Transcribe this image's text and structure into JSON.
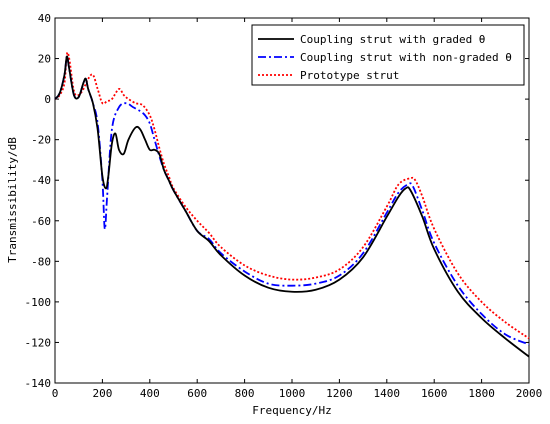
{
  "chart_data": {
    "type": "line",
    "title": "",
    "xlabel": "Frequency/Hz",
    "ylabel": "Transmissibility/dB",
    "xlim": [
      0,
      2000
    ],
    "ylim": [
      -140,
      40
    ],
    "xticks": [
      0,
      200,
      400,
      600,
      800,
      1000,
      1200,
      1400,
      1600,
      1800,
      2000
    ],
    "yticks": [
      -140,
      -120,
      -100,
      -80,
      -60,
      -40,
      -20,
      0,
      20,
      40
    ],
    "grid": false,
    "legend_position": "top-right",
    "series": [
      {
        "name": "Coupling strut with graded θ",
        "color": "#000000",
        "dash": "solid",
        "x": [
          0,
          20,
          40,
          50,
          60,
          80,
          100,
          120,
          130,
          140,
          160,
          180,
          200,
          215,
          225,
          240,
          255,
          270,
          290,
          310,
          340,
          360,
          380,
          400,
          420,
          440,
          460,
          480,
          500,
          550,
          600,
          650,
          700,
          800,
          900,
          1000,
          1100,
          1200,
          1300,
          1400,
          1450,
          1480,
          1500,
          1550,
          1600,
          1700,
          1800,
          1900,
          2000
        ],
        "y": [
          0,
          3,
          12,
          21,
          15,
          2,
          1,
          8,
          10,
          5,
          -2,
          -15,
          -38,
          -44,
          -38,
          -22,
          -17,
          -25,
          -27,
          -20,
          -14,
          -15,
          -20,
          -25,
          -25,
          -27,
          -35,
          -40,
          -45,
          -55,
          -65,
          -70,
          -77,
          -87,
          -93,
          -95,
          -94,
          -89,
          -78,
          -58,
          -48,
          -44,
          -45,
          -58,
          -74,
          -95,
          -108,
          -118,
          -127
        ]
      },
      {
        "name": "Coupling strut with non-graded θ",
        "color": "#0000ff",
        "dash": "dashdot",
        "x": [
          0,
          20,
          40,
          50,
          60,
          80,
          100,
          120,
          130,
          140,
          160,
          180,
          200,
          210,
          220,
          240,
          270,
          300,
          330,
          360,
          380,
          400,
          420,
          440,
          460,
          480,
          500,
          550,
          600,
          650,
          700,
          800,
          900,
          1000,
          1100,
          1200,
          1300,
          1400,
          1450,
          1490,
          1510,
          1550,
          1600,
          1700,
          1800,
          1900,
          2000
        ],
        "y": [
          0,
          3,
          12,
          21,
          15,
          2,
          1,
          8,
          10,
          5,
          -2,
          -12,
          -40,
          -64,
          -48,
          -15,
          -4,
          -2,
          -4,
          -6,
          -8,
          -12,
          -20,
          -28,
          -35,
          -40,
          -45,
          -55,
          -65,
          -69,
          -76,
          -85,
          -91,
          -92,
          -91,
          -87,
          -76,
          -56,
          -46,
          -42,
          -43,
          -55,
          -71,
          -92,
          -106,
          -116,
          -121
        ]
      },
      {
        "name": "Prototype strut",
        "color": "#ff0000",
        "dash": "dotted",
        "x": [
          0,
          20,
          40,
          50,
          60,
          80,
          100,
          120,
          140,
          160,
          180,
          200,
          220,
          240,
          270,
          290,
          310,
          340,
          370,
          400,
          420,
          440,
          460,
          480,
          500,
          550,
          600,
          650,
          700,
          800,
          900,
          1000,
          1100,
          1200,
          1300,
          1400,
          1450,
          1500,
          1520,
          1550,
          1600,
          1700,
          1800,
          1900,
          2000
        ],
        "y": [
          0,
          2,
          8,
          22,
          20,
          4,
          2,
          5,
          10,
          12,
          5,
          -2,
          -1,
          0,
          5,
          2,
          0,
          -2,
          -3,
          -8,
          -15,
          -24,
          -32,
          -38,
          -44,
          -53,
          -60,
          -66,
          -73,
          -82,
          -87,
          -89,
          -88,
          -84,
          -73,
          -53,
          -42,
          -39,
          -40,
          -48,
          -64,
          -86,
          -100,
          -110,
          -118
        ]
      }
    ]
  }
}
